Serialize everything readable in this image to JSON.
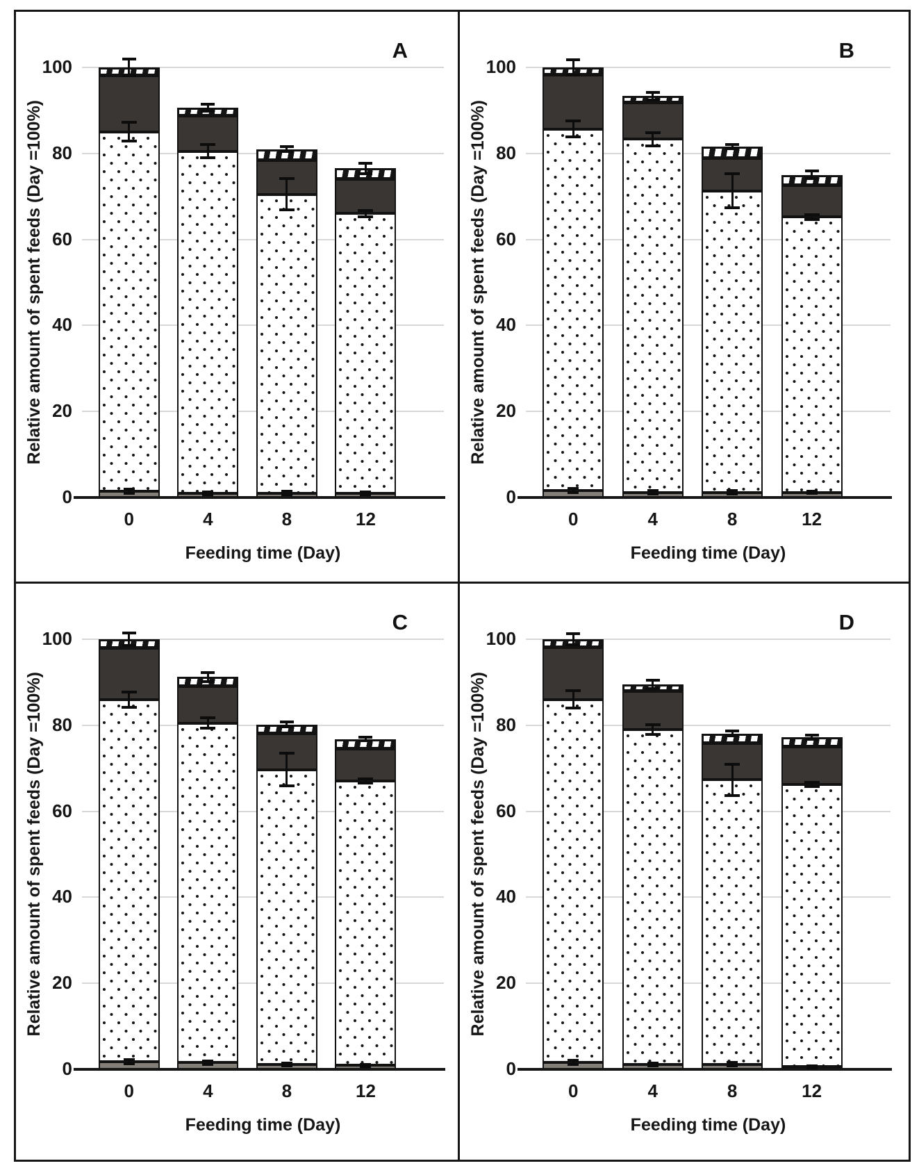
{
  "figure": {
    "background": "#ffffff",
    "frame_color": "#161616",
    "grid_color": "#d8d8d8",
    "panel_letters": [
      "A",
      "B",
      "C",
      "D"
    ]
  },
  "style": {
    "segment_colors": {
      "solid_gray": "#837e78",
      "dotted_fill": "#ffffff",
      "dotted_dot": "#161616",
      "solid_dark": "#3a3633",
      "hatch_background": "#141414",
      "hatch_stripe": "#ffffff"
    }
  },
  "chart_data": [
    {
      "type": "bar",
      "stacked": true,
      "panel_label": "A",
      "xlabel": "Feeding time (Day)",
      "ylabel": "Relative amount of spent feeds (Day =100%)",
      "categories": [
        "0",
        "4",
        "8",
        "12"
      ],
      "ylim": [
        0,
        100
      ],
      "y_ticks": [
        0,
        20,
        40,
        60,
        80,
        100
      ],
      "grid": true,
      "legend": "none",
      "series": [
        {
          "name": "solid-gray-segment",
          "pattern": "solid-gray",
          "values": [
            1.5,
            1.0,
            1.0,
            1.0
          ]
        },
        {
          "name": "dotted-segment",
          "pattern": "dotted-white",
          "values": [
            83.5,
            79.5,
            69.5,
            65.0
          ]
        },
        {
          "name": "dark-segment",
          "pattern": "solid-dark",
          "values": [
            13.0,
            8.2,
            7.8,
            8.0
          ]
        },
        {
          "name": "hatched-segment",
          "pattern": "white-on-black-hatch",
          "values": [
            2.0,
            2.0,
            2.7,
            2.5
          ]
        }
      ],
      "stack_totals": [
        100.0,
        90.7,
        81.0,
        76.5
      ],
      "error_bars": {
        "gray_top": [
          0.5,
          0.3,
          0.4,
          0.3
        ],
        "dotted_top": [
          2.2,
          1.5,
          3.6,
          0.7
        ],
        "total_top": [
          2.0,
          0.8,
          0.6,
          1.2
        ]
      }
    },
    {
      "type": "bar",
      "stacked": true,
      "panel_label": "B",
      "xlabel": "Feeding time (Day)",
      "ylabel": "Relative amount of spent feeds (Day =100%)",
      "categories": [
        "0",
        "4",
        "8",
        "12"
      ],
      "ylim": [
        0,
        100
      ],
      "y_ticks": [
        0,
        20,
        40,
        60,
        80,
        100
      ],
      "grid": true,
      "legend": "none",
      "series": [
        {
          "name": "solid-gray-segment",
          "pattern": "solid-gray",
          "values": [
            1.6,
            1.2,
            1.2,
            1.2
          ]
        },
        {
          "name": "dotted-segment",
          "pattern": "dotted-white",
          "values": [
            84.1,
            82.1,
            70.1,
            64.0
          ]
        },
        {
          "name": "dark-segment",
          "pattern": "solid-dark",
          "values": [
            12.5,
            8.5,
            7.6,
            7.3
          ]
        },
        {
          "name": "hatched-segment",
          "pattern": "white-on-black-hatch",
          "values": [
            1.8,
            1.5,
            2.7,
            2.5
          ]
        }
      ],
      "stack_totals": [
        100.0,
        93.3,
        81.6,
        75.0
      ],
      "error_bars": {
        "gray_top": [
          0.5,
          0.4,
          0.4,
          0.3
        ],
        "dotted_top": [
          1.8,
          1.5,
          4.0,
          0.5
        ],
        "total_top": [
          1.8,
          0.9,
          0.5,
          0.9
        ]
      }
    },
    {
      "type": "bar",
      "stacked": true,
      "panel_label": "C",
      "xlabel": "Feeding time (Day)",
      "ylabel": "Relative amount of spent feeds (Day =100%)",
      "categories": [
        "0",
        "4",
        "8",
        "12"
      ],
      "ylim": [
        0,
        100
      ],
      "y_ticks": [
        0,
        20,
        40,
        60,
        80,
        100
      ],
      "grid": true,
      "legend": "none",
      "series": [
        {
          "name": "solid-gray-segment",
          "pattern": "solid-gray",
          "values": [
            1.8,
            1.6,
            1.1,
            0.9
          ]
        },
        {
          "name": "dotted-segment",
          "pattern": "dotted-white",
          "values": [
            84.2,
            78.9,
            68.6,
            66.1
          ]
        },
        {
          "name": "dark-segment",
          "pattern": "solid-dark",
          "values": [
            11.9,
            8.5,
            8.3,
            7.5
          ]
        },
        {
          "name": "hatched-segment",
          "pattern": "white-on-black-hatch",
          "values": [
            2.1,
            2.2,
            2.2,
            2.3
          ]
        }
      ],
      "stack_totals": [
        100.0,
        91.2,
        80.2,
        76.8
      ],
      "error_bars": {
        "gray_top": [
          0.5,
          0.4,
          0.3,
          0.3
        ],
        "dotted_top": [
          1.8,
          1.2,
          3.8,
          0.5
        ],
        "total_top": [
          1.5,
          1.0,
          0.5,
          0.4
        ]
      }
    },
    {
      "type": "bar",
      "stacked": true,
      "panel_label": "D",
      "xlabel": "Feeding time (Day)",
      "ylabel": "Relative amount of spent feeds (Day =100%)",
      "categories": [
        "0",
        "4",
        "8",
        "12"
      ],
      "ylim": [
        0,
        100
      ],
      "y_ticks": [
        0,
        20,
        40,
        60,
        80,
        100
      ],
      "grid": true,
      "legend": "none",
      "series": [
        {
          "name": "solid-gray-segment",
          "pattern": "solid-gray",
          "values": [
            1.6,
            1.1,
            1.2,
            0.6
          ]
        },
        {
          "name": "dotted-segment",
          "pattern": "dotted-white",
          "values": [
            84.4,
            77.9,
            66.1,
            65.6
          ]
        },
        {
          "name": "dark-segment",
          "pattern": "solid-dark",
          "values": [
            12.0,
            8.9,
            8.5,
            8.7
          ]
        },
        {
          "name": "hatched-segment",
          "pattern": "white-on-black-hatch",
          "values": [
            2.0,
            1.6,
            2.3,
            2.3
          ]
        }
      ],
      "stack_totals": [
        100.0,
        89.5,
        78.1,
        77.2
      ],
      "error_bars": {
        "gray_top": [
          0.5,
          0.3,
          0.4,
          0.2
        ],
        "dotted_top": [
          2.0,
          1.2,
          3.7,
          0.5
        ],
        "total_top": [
          1.3,
          0.9,
          0.6,
          0.5
        ]
      }
    }
  ]
}
